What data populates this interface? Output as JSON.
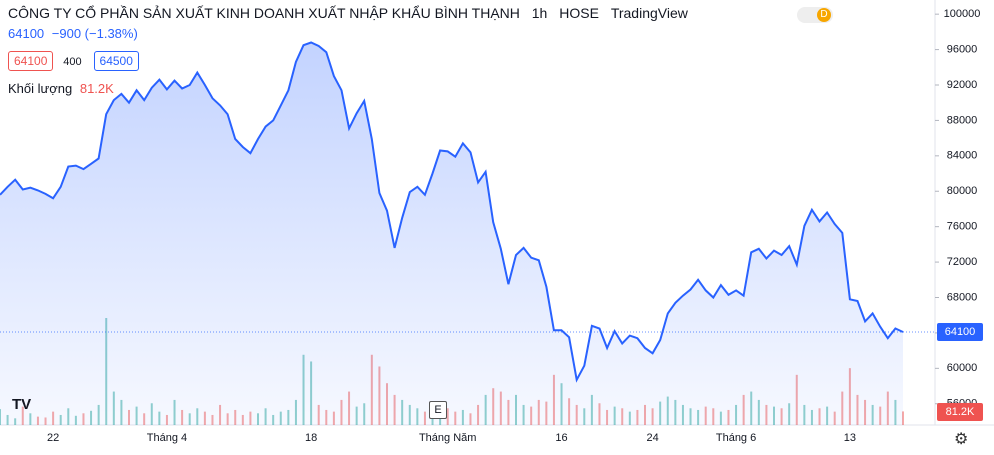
{
  "header": {
    "title": "CÔNG TY CỔ PHẦN SẢN XUẤT KINH DOANH XUẤT NHẬP KHẨU BÌNH THẠNH",
    "interval": "1h",
    "exchange": "HOSE",
    "source": "TradingView",
    "badge": "D",
    "price": "64100",
    "change": "−900 (−1.38%)",
    "sell": "64100",
    "spread": "400",
    "buy": "64500",
    "volume_label": "Khối lượng",
    "event_marker": "E"
  },
  "chart_data": {
    "type": "area",
    "color": "#2962ff",
    "grid": false,
    "categories": [
      null,
      null,
      null,
      null,
      null,
      null,
      null,
      "22",
      null,
      null,
      null,
      null,
      null,
      null,
      null,
      null,
      null,
      null,
      null,
      null,
      null,
      null,
      "Tháng 4",
      null,
      null,
      null,
      null,
      null,
      null,
      null,
      null,
      null,
      null,
      null,
      null,
      null,
      null,
      null,
      null,
      null,
      null,
      "18",
      null,
      null,
      null,
      null,
      null,
      null,
      null,
      null,
      null,
      null,
      null,
      null,
      null,
      null,
      null,
      null,
      null,
      "Tháng Năm",
      null,
      null,
      null,
      null,
      null,
      null,
      null,
      null,
      null,
      null,
      null,
      null,
      null,
      null,
      "16",
      null,
      null,
      null,
      null,
      null,
      null,
      null,
      null,
      null,
      null,
      null,
      "24",
      null,
      null,
      null,
      null,
      null,
      null,
      null,
      null,
      null,
      null,
      "Tháng 6",
      null,
      null,
      null,
      null,
      null,
      null,
      null,
      null,
      null,
      null,
      null,
      null,
      null,
      null,
      "13",
      null,
      null,
      null,
      null,
      null,
      null,
      null
    ],
    "values": [
      79600,
      80500,
      81300,
      80200,
      80400,
      80100,
      79700,
      79200,
      80500,
      82800,
      82900,
      82500,
      83100,
      83700,
      88700,
      90300,
      91000,
      90000,
      91400,
      90300,
      91700,
      92600,
      91500,
      92500,
      91600,
      92000,
      93400,
      92000,
      90500,
      89700,
      88700,
      85900,
      85000,
      84300,
      85900,
      87300,
      88000,
      89700,
      91400,
      94600,
      96500,
      96800,
      96400,
      95700,
      93000,
      91400,
      87100,
      88800,
      90200,
      85900,
      79800,
      77800,
      73600,
      77000,
      79900,
      80500,
      79600,
      82000,
      84600,
      84500,
      83900,
      85400,
      84400,
      81000,
      82200,
      76500,
      73500,
      69500,
      72800,
      73600,
      72500,
      72200,
      69200,
      64300,
      64300,
      63500,
      58700,
      60300,
      64800,
      64500,
      62300,
      64200,
      62800,
      63700,
      63400,
      62300,
      61700,
      63200,
      66200,
      67400,
      68200,
      68900,
      70000,
      68800,
      68000,
      69400,
      68300,
      68800,
      68200,
      73100,
      73500,
      72400,
      73300,
      72800,
      73800,
      71700,
      76100,
      77900,
      76600,
      77600,
      76300,
      75300,
      67800,
      67600,
      65300,
      66200,
      64700,
      63400,
      64500,
      64100
    ],
    "ylim": [
      53600,
      101600
    ],
    "yticks": [
      56000,
      60000,
      64000,
      68000,
      72000,
      76000,
      80000,
      84000,
      88000,
      92000,
      96000,
      100000
    ],
    "volume": {
      "up_color": "#26a69a",
      "down_color": "#ef5350",
      "last_label": "81.2K",
      "values": [
        95000,
        60000,
        40000,
        110000,
        70000,
        50000,
        45000,
        80000,
        60000,
        100000,
        55000,
        70000,
        85000,
        120000,
        640000,
        200000,
        150000,
        90000,
        110000,
        70000,
        130000,
        80000,
        60000,
        150000,
        90000,
        70000,
        100000,
        80000,
        60000,
        120000,
        70000,
        90000,
        60000,
        80000,
        70000,
        100000,
        60000,
        80000,
        90000,
        150000,
        420000,
        380000,
        120000,
        90000,
        80000,
        150000,
        200000,
        110000,
        130000,
        420000,
        350000,
        250000,
        180000,
        150000,
        120000,
        100000,
        80000,
        90000,
        110000,
        100000,
        80000,
        90000,
        70000,
        120000,
        180000,
        220000,
        200000,
        150000,
        180000,
        120000,
        110000,
        150000,
        140000,
        300000,
        250000,
        160000,
        120000,
        100000,
        180000,
        130000,
        90000,
        110000,
        100000,
        80000,
        90000,
        120000,
        100000,
        140000,
        170000,
        150000,
        120000,
        100000,
        90000,
        110000,
        100000,
        80000,
        90000,
        120000,
        180000,
        200000,
        150000,
        120000,
        110000,
        100000,
        130000,
        300000,
        120000,
        90000,
        100000,
        110000,
        80000,
        200000,
        340000,
        180000,
        150000,
        120000,
        110000,
        200000,
        150000,
        81200
      ]
    }
  }
}
